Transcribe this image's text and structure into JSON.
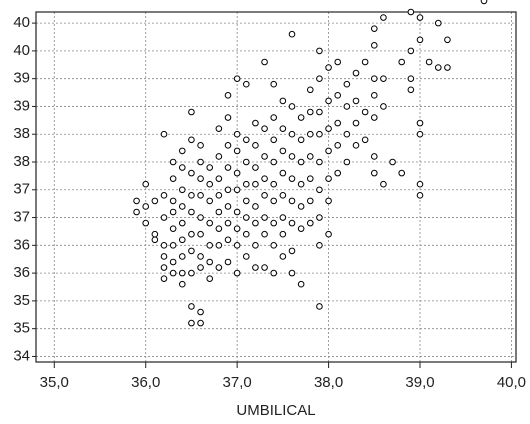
{
  "chart_data": {
    "type": "scatter",
    "x_label": "UMBILICAL",
    "xlim": [
      34.8,
      40.05
    ],
    "ylim": [
      33.9,
      40.2
    ],
    "xticks": [
      {
        "value": 35.0,
        "label": "35,0"
      },
      {
        "value": 36.0,
        "label": "36,0"
      },
      {
        "value": 37.0,
        "label": "37,0"
      },
      {
        "value": 38.0,
        "label": "38,0"
      },
      {
        "value": 39.0,
        "label": "39,0"
      },
      {
        "value": 40.0,
        "label": "40,0"
      }
    ],
    "yticks": [
      {
        "value": 34.0,
        "label": "34"
      },
      {
        "value": 34.5,
        "label": "35"
      },
      {
        "value": 35.0,
        "label": "35"
      },
      {
        "value": 35.5,
        "label": "36"
      },
      {
        "value": 36.0,
        "label": "36"
      },
      {
        "value": 36.5,
        "label": "37"
      },
      {
        "value": 37.0,
        "label": "37"
      },
      {
        "value": 37.5,
        "label": "38"
      },
      {
        "value": 38.0,
        "label": "38"
      },
      {
        "value": 38.5,
        "label": "39"
      },
      {
        "value": 39.0,
        "label": "39"
      },
      {
        "value": 39.5,
        "label": "40"
      },
      {
        "value": 40.0,
        "label": "40"
      }
    ],
    "grid": true,
    "color": "#000000",
    "x": [
      35.9,
      35.9,
      36.0,
      36.0,
      36.0,
      36.1,
      36.1,
      36.1,
      36.2,
      36.2,
      36.2,
      36.2,
      36.2,
      36.2,
      36.2,
      36.3,
      36.3,
      36.3,
      36.3,
      36.3,
      36.3,
      36.3,
      36.3,
      36.4,
      36.4,
      36.4,
      36.4,
      36.4,
      36.4,
      36.4,
      36.4,
      36.4,
      36.5,
      36.5,
      36.5,
      36.5,
      36.5,
      36.5,
      36.5,
      36.5,
      36.5,
      36.5,
      36.6,
      36.6,
      36.6,
      36.6,
      36.6,
      36.6,
      36.6,
      36.6,
      36.6,
      36.6,
      36.7,
      36.7,
      36.7,
      36.7,
      36.7,
      36.7,
      36.7,
      36.8,
      36.8,
      36.8,
      36.8,
      36.8,
      36.8,
      36.8,
      36.8,
      36.9,
      36.9,
      36.9,
      36.9,
      36.9,
      36.9,
      36.9,
      36.9,
      36.9,
      37.0,
      37.0,
      37.0,
      37.0,
      37.0,
      37.0,
      37.0,
      37.0,
      37.0,
      37.1,
      37.1,
      37.1,
      37.1,
      37.1,
      37.1,
      37.1,
      37.1,
      37.2,
      37.2,
      37.2,
      37.2,
      37.2,
      37.2,
      37.2,
      37.2,
      37.3,
      37.3,
      37.3,
      37.3,
      37.3,
      37.3,
      37.3,
      37.3,
      37.4,
      37.4,
      37.4,
      37.4,
      37.4,
      37.4,
      37.4,
      37.4,
      37.4,
      37.5,
      37.5,
      37.5,
      37.5,
      37.5,
      37.5,
      37.5,
      37.5,
      37.6,
      37.6,
      37.6,
      37.6,
      37.6,
      37.6,
      37.6,
      37.6,
      37.6,
      37.7,
      37.7,
      37.7,
      37.7,
      37.7,
      37.7,
      37.7,
      37.8,
      37.8,
      37.8,
      37.8,
      37.8,
      37.8,
      37.8,
      37.9,
      37.9,
      37.9,
      37.9,
      37.9,
      37.9,
      37.9,
      37.9,
      37.9,
      38.0,
      38.0,
      38.0,
      38.0,
      38.0,
      38.0,
      38.0,
      38.1,
      38.1,
      38.1,
      38.1,
      38.1,
      38.2,
      38.2,
      38.2,
      38.2,
      38.3,
      38.3,
      38.3,
      38.3,
      38.4,
      38.4,
      38.4,
      38.5,
      38.5,
      38.5,
      38.5,
      38.5,
      38.5,
      38.5,
      38.6,
      38.6,
      38.6,
      38.6,
      38.7,
      38.8,
      38.8,
      38.9,
      38.9,
      38.9,
      38.9,
      39.0,
      39.0,
      39.0,
      39.0,
      39.0,
      39.0,
      39.1,
      39.2,
      39.2,
      39.3,
      39.3,
      39.7
    ],
    "values": [
      36.8,
      36.6,
      37.1,
      36.7,
      36.4,
      36.8,
      36.2,
      36.1,
      38.0,
      36.9,
      36.5,
      36.0,
      35.8,
      35.6,
      35.4,
      37.5,
      37.2,
      36.8,
      36.6,
      36.3,
      36.0,
      35.7,
      35.5,
      37.7,
      37.4,
      37.0,
      36.7,
      36.4,
      36.1,
      35.8,
      35.5,
      35.3,
      38.4,
      37.9,
      37.3,
      36.9,
      36.6,
      36.2,
      35.9,
      35.5,
      34.9,
      34.6,
      37.8,
      37.5,
      37.2,
      36.9,
      36.5,
      36.2,
      35.8,
      35.6,
      34.8,
      34.6,
      37.4,
      37.1,
      36.8,
      36.4,
      36.0,
      35.7,
      35.4,
      38.1,
      37.6,
      37.2,
      36.9,
      36.6,
      36.3,
      36.0,
      35.6,
      38.7,
      38.3,
      37.8,
      37.4,
      37.0,
      36.7,
      36.4,
      36.1,
      35.7,
      39.0,
      38.0,
      37.7,
      37.3,
      37.0,
      36.6,
      36.3,
      36.0,
      35.5,
      38.9,
      37.9,
      37.5,
      37.1,
      36.8,
      36.5,
      36.2,
      35.8,
      38.2,
      37.8,
      37.4,
      37.1,
      36.7,
      36.4,
      36.0,
      35.6,
      39.3,
      38.1,
      37.6,
      37.2,
      36.9,
      36.5,
      36.2,
      35.6,
      38.9,
      38.3,
      37.9,
      37.5,
      37.1,
      36.8,
      36.4,
      36.0,
      35.5,
      38.6,
      38.1,
      37.7,
      37.3,
      36.9,
      36.5,
      36.2,
      35.8,
      39.8,
      38.5,
      38.0,
      37.6,
      37.2,
      36.8,
      36.4,
      35.9,
      35.5,
      38.3,
      37.9,
      37.5,
      37.1,
      36.7,
      36.3,
      35.3,
      38.8,
      38.4,
      38.0,
      37.6,
      37.2,
      36.8,
      36.4,
      39.5,
      39.0,
      38.4,
      38.0,
      37.5,
      37.0,
      36.5,
      36.0,
      34.9,
      39.2,
      38.6,
      38.1,
      37.7,
      37.2,
      36.8,
      36.2,
      39.3,
      38.7,
      38.2,
      37.8,
      37.3,
      38.9,
      38.5,
      38.0,
      37.5,
      39.1,
      38.6,
      38.2,
      37.8,
      39.3,
      38.4,
      37.9,
      39.9,
      39.6,
      39.0,
      38.7,
      38.3,
      37.6,
      37.3,
      40.1,
      39.0,
      38.5,
      37.1,
      37.5,
      39.3,
      37.3,
      40.2,
      39.5,
      39.0,
      38.8,
      40.1,
      39.7,
      38.2,
      38.0,
      37.1,
      36.9,
      39.3,
      40.0,
      39.2,
      39.7,
      39.2,
      40.4
    ]
  }
}
